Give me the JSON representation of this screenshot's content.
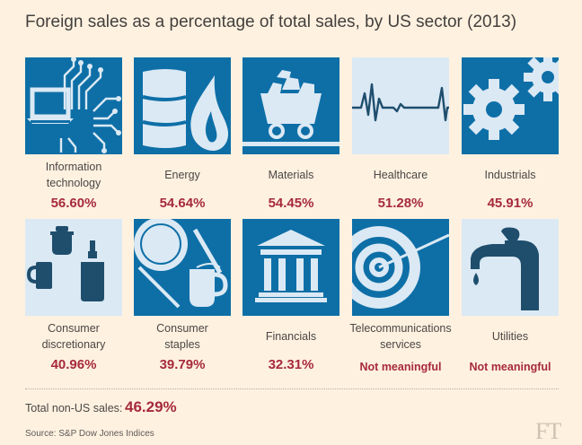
{
  "title": "Foreign sales as a percentage of total sales, by US sector (2013)",
  "chart_data": {
    "type": "table",
    "title": "Foreign sales as a percentage of total sales, by US sector (2013)",
    "sectors": [
      {
        "name_lines": [
          "Information",
          "technology"
        ],
        "value": 56.6,
        "display": "56.60%",
        "icon": "laptop-circuit-icon"
      },
      {
        "name_lines": [
          "Energy"
        ],
        "value": 54.64,
        "display": "54.64%",
        "icon": "oil-barrel-flame-icon"
      },
      {
        "name_lines": [
          "Materials"
        ],
        "value": 54.45,
        "display": "54.45%",
        "icon": "mine-cart-icon"
      },
      {
        "name_lines": [
          "Healthcare"
        ],
        "value": 51.28,
        "display": "51.28%",
        "icon": "heartbeat-icon"
      },
      {
        "name_lines": [
          "Industrials"
        ],
        "value": 45.91,
        "display": "45.91%",
        "icon": "gears-icon"
      },
      {
        "name_lines": [
          "Consumer",
          "discretionary"
        ],
        "value": 40.96,
        "display": "40.96%",
        "icon": "kitchen-containers-icon"
      },
      {
        "name_lines": [
          "Consumer",
          "staples"
        ],
        "value": 39.79,
        "display": "39.79%",
        "icon": "plate-cutlery-mug-icon"
      },
      {
        "name_lines": [
          "Financials"
        ],
        "value": 32.31,
        "display": "32.31%",
        "icon": "bank-building-icon"
      },
      {
        "name_lines": [
          "Telecommunications",
          "services"
        ],
        "value": null,
        "display": "Not meaningful",
        "icon": "radar-signal-icon"
      },
      {
        "name_lines": [
          "Utilities"
        ],
        "value": null,
        "display": "Not meaningful",
        "icon": "water-tap-icon"
      }
    ],
    "total": {
      "label": "Total non-US sales:",
      "value": 46.29,
      "display": "46.29%"
    }
  },
  "source": "Source: S&P Dow Jones Indices",
  "brand": "FT",
  "colors": {
    "background": "#fff1e0",
    "icon_bg": "#0e6fa7",
    "icon_fg": "#dbe9f4",
    "value": "#a62a3a"
  }
}
